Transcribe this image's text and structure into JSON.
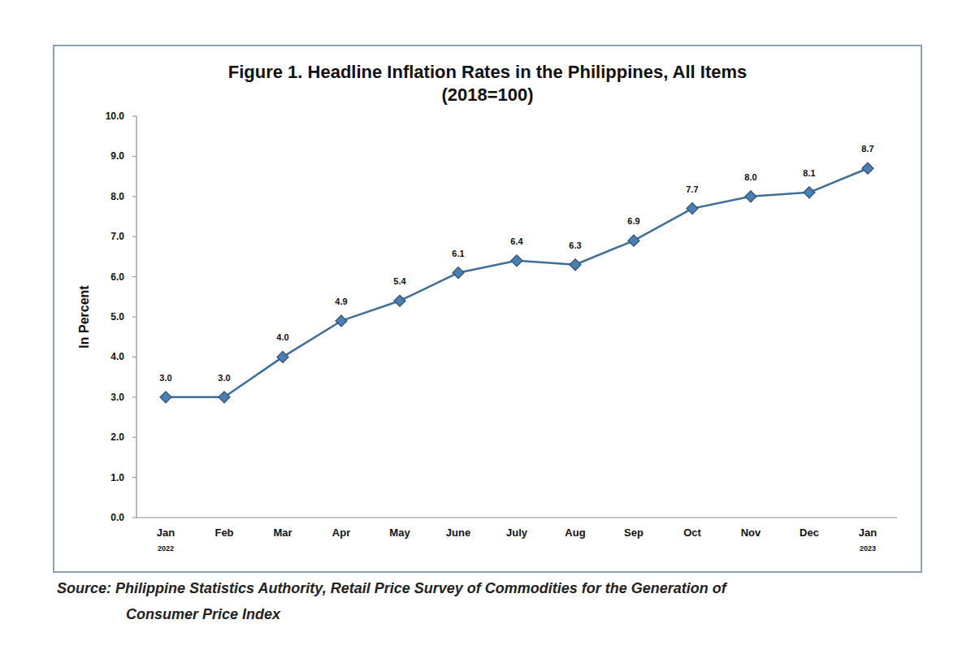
{
  "chart_data": {
    "type": "line",
    "title": "Figure 1. Headline Inflation Rates in the Philippines, All Items",
    "subtitle": "(2018=100)",
    "y_label": "In Percent",
    "categories": [
      "Jan",
      "Feb",
      "Mar",
      "Apr",
      "May",
      "June",
      "July",
      "Aug",
      "Sep",
      "Oct",
      "Nov",
      "Dec",
      "Jan"
    ],
    "category_years": [
      "2022",
      null,
      null,
      null,
      null,
      null,
      null,
      null,
      null,
      null,
      null,
      null,
      "2023"
    ],
    "values": [
      3.0,
      3.0,
      4.0,
      4.9,
      5.4,
      6.1,
      6.4,
      6.3,
      6.9,
      7.7,
      8.0,
      8.1,
      8.7
    ],
    "value_labels": [
      "3.0",
      "3.0",
      "4.0",
      "4.9",
      "5.4",
      "6.1",
      "6.4",
      "6.3",
      "6.9",
      "7.7",
      "8.0",
      "8.1",
      "8.7"
    ],
    "color": "#3f6f99",
    "marker": "diamond",
    "line_style": "solid",
    "data_labels": true,
    "grid": false,
    "ylim": [
      0,
      10
    ],
    "yticks": [
      {
        "value": 0,
        "label": "0.0"
      },
      {
        "value": 1,
        "label": "1.0"
      },
      {
        "value": 2,
        "label": "2.0"
      },
      {
        "value": 3,
        "label": "3.0"
      },
      {
        "value": 4,
        "label": "4.0"
      },
      {
        "value": 5,
        "label": "5.0"
      },
      {
        "value": 6,
        "label": "6.0"
      },
      {
        "value": 7,
        "label": "7.0"
      },
      {
        "value": 8,
        "label": "8.0"
      },
      {
        "value": 9,
        "label": "9.0"
      },
      {
        "value": 10,
        "label": "10.0"
      }
    ],
    "source_lines": [
      "Source: Philippine Statistics Authority, Retail Price Survey of Commodities for the Generation of",
      "Consumer Price Index"
    ]
  }
}
